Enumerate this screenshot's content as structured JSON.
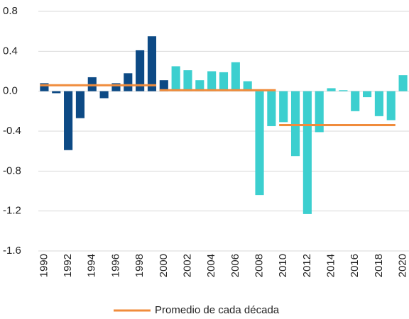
{
  "chart_data": {
    "type": "bar",
    "categories": [
      "1990",
      null,
      "1992",
      null,
      "1994",
      null,
      "1996",
      null,
      "1998",
      null,
      "2000",
      null,
      "2002",
      null,
      "2004",
      null,
      "2006",
      null,
      "2008",
      null,
      "2010",
      null,
      "2012",
      null,
      "2014",
      null,
      "2016",
      null,
      "2018",
      null,
      "2020"
    ],
    "values": [
      0.08,
      -0.02,
      -0.59,
      -0.27,
      0.14,
      -0.07,
      0.08,
      0.18,
      0.41,
      0.55,
      0.11,
      0.25,
      0.21,
      0.11,
      0.2,
      0.19,
      0.29,
      0.1,
      -1.04,
      -0.35,
      -0.31,
      -0.65,
      -1.23,
      -0.41,
      0.03,
      0.01,
      -0.2,
      -0.06,
      -0.25,
      -0.29,
      0.16
    ],
    "colors": [
      "#0d4a85",
      "#0d4a85",
      "#0d4a85",
      "#0d4a85",
      "#0d4a85",
      "#0d4a85",
      "#0d4a85",
      "#0d4a85",
      "#0d4a85",
      "#0d4a85",
      "#0d4a85",
      "#3ccfcf",
      "#3ccfcf",
      "#3ccfcf",
      "#3ccfcf",
      "#3ccfcf",
      "#3ccfcf",
      "#3ccfcf",
      "#3ccfcf",
      "#3ccfcf",
      "#3ccfcf",
      "#3ccfcf",
      "#3ccfcf",
      "#3ccfcf",
      "#3ccfcf",
      "#3ccfcf",
      "#3ccfcf",
      "#3ccfcf",
      "#3ccfcf",
      "#3ccfcf",
      "#3ccfcf"
    ],
    "ylim": [
      -1.6,
      0.8
    ],
    "yticks": [
      -1.6,
      -1.2,
      -0.8,
      -0.4,
      {
        "value": 0,
        "label": "0.0"
      },
      0.4,
      0.8
    ],
    "grid": true,
    "averages": {
      "name": "Promedio de cada década",
      "color": "#f08c3c",
      "segments": [
        {
          "from": 1990,
          "to": 1999,
          "value": 0.06
        },
        {
          "from": 2000,
          "to": 2009,
          "value": 0.01
        },
        {
          "from": 2010,
          "to": 2019,
          "value": -0.34
        }
      ]
    },
    "legend": "bottom"
  }
}
